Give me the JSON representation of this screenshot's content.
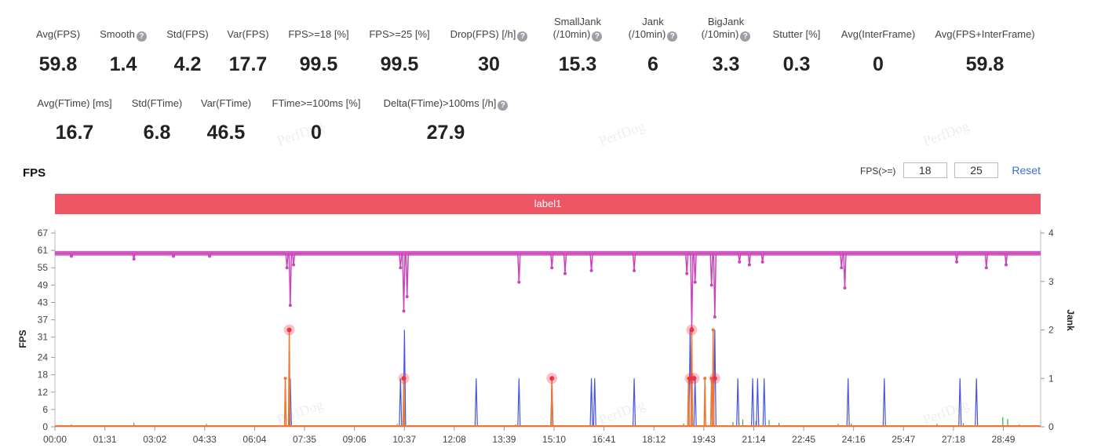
{
  "stats_row1": [
    {
      "label": "Avg(FPS)",
      "value": "59.8",
      "help": false
    },
    {
      "label": "Smooth",
      "value": "1.4",
      "help": true
    },
    {
      "label": "Std(FPS)",
      "value": "4.2",
      "help": false
    },
    {
      "label": "Var(FPS)",
      "value": "17.7",
      "help": false
    },
    {
      "label": "FPS>=18 [%]",
      "value": "99.5",
      "help": false
    },
    {
      "label": "FPS>=25 [%]",
      "value": "99.5",
      "help": false
    },
    {
      "label": "Drop(FPS) [/h]",
      "value": "30",
      "help": true
    },
    {
      "label": "SmallJank",
      "label2": "(/10min)",
      "value": "15.3",
      "help": true
    },
    {
      "label": "Jank",
      "label2": "(/10min)",
      "value": "6",
      "help": true
    },
    {
      "label": "BigJank",
      "label2": "(/10min)",
      "value": "3.3",
      "help": true
    },
    {
      "label": "Stutter [%]",
      "value": "0.3",
      "help": false
    },
    {
      "label": "Avg(InterFrame)",
      "value": "0",
      "help": false
    },
    {
      "label": "Avg(FPS+InterFrame)",
      "value": "59.8",
      "help": false
    }
  ],
  "stats_row2": [
    {
      "label": "Avg(FTime) [ms]",
      "value": "16.7",
      "help": false
    },
    {
      "label": "Std(FTime)",
      "value": "6.8",
      "help": false
    },
    {
      "label": "Var(FTime)",
      "value": "46.5",
      "help": false
    },
    {
      "label": "FTime>=100ms [%]",
      "value": "0",
      "help": false
    },
    {
      "label": "Delta(FTime)>100ms [/h]",
      "value": "27.9",
      "help": true
    }
  ],
  "watermark_text": "PerfDog",
  "fps_threshold": {
    "label": "FPS(>=)",
    "value1": "18",
    "value2": "25",
    "reset_label": "Reset"
  },
  "label_band": "label1",
  "colors": {
    "fps": "#cc44bb",
    "jank": "#ee7733",
    "bigjank": "#4455dd",
    "smalljank": "#33aa44",
    "marker": "#ee3344",
    "band": "#ee5565"
  },
  "chart_data": {
    "type": "line",
    "title": "FPS",
    "xlabel": "",
    "ylabel": "FPS",
    "y2label": "Jank",
    "xlim_minutes": [
      0,
      29.95
    ],
    "ylim": [
      0,
      67
    ],
    "y2lim": [
      0,
      4
    ],
    "y_ticks": [
      "0",
      "6",
      "12",
      "18",
      "24",
      "31",
      "37",
      "43",
      "49",
      "55",
      "61",
      "67"
    ],
    "y2_ticks": [
      "0",
      "1",
      "2",
      "3",
      "4"
    ],
    "x_ticks": [
      "00:00",
      "01:31",
      "03:02",
      "04:33",
      "06:04",
      "07:35",
      "09:06",
      "10:37",
      "12:08",
      "13:39",
      "15:10",
      "16:41",
      "18:12",
      "19:43",
      "21:14",
      "22:45",
      "24:16",
      "25:47",
      "27:18",
      "28:49"
    ],
    "fps_baseline": 60,
    "fps_dips": [
      {
        "t": 0.5,
        "v": 59
      },
      {
        "t": 2.4,
        "v": 58
      },
      {
        "t": 3.6,
        "v": 59
      },
      {
        "t": 4.7,
        "v": 59
      },
      {
        "t": 7.05,
        "v": 55
      },
      {
        "t": 7.15,
        "v": 42
      },
      {
        "t": 7.25,
        "v": 56
      },
      {
        "t": 10.5,
        "v": 55
      },
      {
        "t": 10.6,
        "v": 40
      },
      {
        "t": 10.7,
        "v": 45
      },
      {
        "t": 14.1,
        "v": 50
      },
      {
        "t": 15.1,
        "v": 55
      },
      {
        "t": 15.5,
        "v": 53
      },
      {
        "t": 16.3,
        "v": 54
      },
      {
        "t": 17.6,
        "v": 54
      },
      {
        "t": 19.2,
        "v": 53
      },
      {
        "t": 19.35,
        "v": 34
      },
      {
        "t": 19.45,
        "v": 50
      },
      {
        "t": 19.95,
        "v": 49
      },
      {
        "t": 20.05,
        "v": 38
      },
      {
        "t": 20.8,
        "v": 57
      },
      {
        "t": 21.1,
        "v": 56
      },
      {
        "t": 21.5,
        "v": 57
      },
      {
        "t": 23.9,
        "v": 55
      },
      {
        "t": 24.0,
        "v": 48
      },
      {
        "t": 27.4,
        "v": 57
      },
      {
        "t": 28.3,
        "v": 55
      },
      {
        "t": 28.9,
        "v": 56
      }
    ],
    "bigjank_spikes": [
      {
        "t": 7.15,
        "v": 1
      },
      {
        "t": 10.5,
        "v": 1
      },
      {
        "t": 10.62,
        "v": 2
      },
      {
        "t": 12.8,
        "v": 1
      },
      {
        "t": 14.1,
        "v": 1
      },
      {
        "t": 15.1,
        "v": 1
      },
      {
        "t": 16.3,
        "v": 1
      },
      {
        "t": 16.4,
        "v": 1
      },
      {
        "t": 17.6,
        "v": 1
      },
      {
        "t": 19.3,
        "v": 2
      },
      {
        "t": 19.45,
        "v": 1
      },
      {
        "t": 20.05,
        "v": 2
      },
      {
        "t": 20.75,
        "v": 1
      },
      {
        "t": 21.2,
        "v": 1
      },
      {
        "t": 21.35,
        "v": 1
      },
      {
        "t": 21.55,
        "v": 1
      },
      {
        "t": 24.1,
        "v": 1
      },
      {
        "t": 25.2,
        "v": 1
      },
      {
        "t": 27.5,
        "v": 1
      },
      {
        "t": 28.0,
        "v": 1
      }
    ],
    "jank_spikes": [
      {
        "t": 7.0,
        "v": 1
      },
      {
        "t": 7.12,
        "v": 2
      },
      {
        "t": 10.6,
        "v": 1
      },
      {
        "t": 15.1,
        "v": 1
      },
      {
        "t": 19.25,
        "v": 1
      },
      {
        "t": 19.35,
        "v": 2
      },
      {
        "t": 19.75,
        "v": 1
      },
      {
        "t": 19.95,
        "v": 1
      },
      {
        "t": 20.0,
        "v": 2
      }
    ],
    "markers": [
      {
        "t": 7.12,
        "v": 2
      },
      {
        "t": 10.6,
        "v": 1
      },
      {
        "t": 15.1,
        "v": 1
      },
      {
        "t": 19.3,
        "v": 1
      },
      {
        "t": 19.35,
        "v": 2
      },
      {
        "t": 19.42,
        "v": 1
      },
      {
        "t": 20.05,
        "v": 1
      }
    ],
    "smalljank_spikes": [
      {
        "t": 0.5,
        "v": 0.05
      },
      {
        "t": 2.4,
        "v": 0.08
      },
      {
        "t": 4.6,
        "v": 0.06
      },
      {
        "t": 7.1,
        "v": 0.05
      },
      {
        "t": 10.4,
        "v": 0.06
      },
      {
        "t": 14.0,
        "v": 0.05
      },
      {
        "t": 19.1,
        "v": 0.07
      },
      {
        "t": 20.6,
        "v": 0.1
      },
      {
        "t": 20.9,
        "v": 0.15
      },
      {
        "t": 21.3,
        "v": 0.12
      },
      {
        "t": 21.7,
        "v": 0.14
      },
      {
        "t": 22.0,
        "v": 0.08
      },
      {
        "t": 23.8,
        "v": 0.06
      },
      {
        "t": 24.2,
        "v": 0.07
      },
      {
        "t": 26.8,
        "v": 0.06
      },
      {
        "t": 27.6,
        "v": 0.08
      },
      {
        "t": 28.8,
        "v": 0.2
      },
      {
        "t": 28.95,
        "v": 0.16
      },
      {
        "t": 29.3,
        "v": 0.05
      }
    ]
  }
}
